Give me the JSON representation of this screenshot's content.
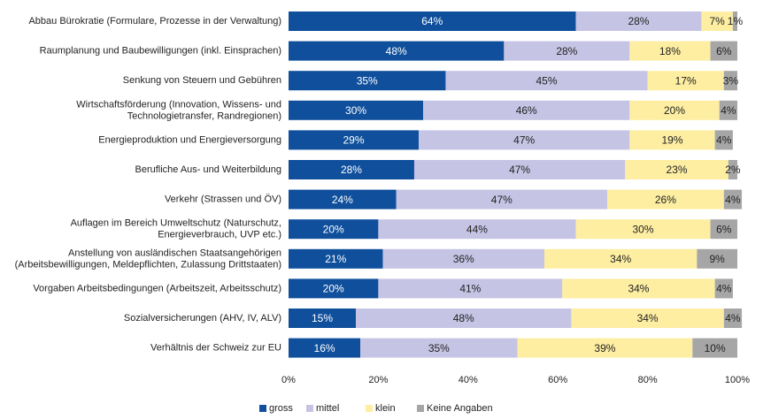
{
  "chart_data": {
    "type": "stacked_bar_horizontal",
    "categories": [
      "Abbau Bürokratie (Formulare, Prozesse in der Verwaltung)",
      "Raumplanung und Baubewilligungen (inkl. Einsprachen)",
      "Senkung von Steuern und Gebühren",
      "Wirtschaftsförderung (Innovation, Wissens- und\nTechnologietransfer, Randregionen)",
      "Energieproduktion und Energieversorgung",
      "Berufliche Aus- und Weiterbildung",
      "Verkehr (Strassen und ÖV)",
      "Auflagen im Bereich Umweltschutz (Naturschutz,\nEnergieverbrauch, UVP etc.)",
      "Anstellung von ausländischen Staatsangehörigen\n(Arbeitsbewilligungen, Meldepflichten, Zulassung Drittstaaten)",
      "Vorgaben Arbeitsbedingungen (Arbeitszeit, Arbeitsschutz)",
      "Sozialversicherungen (AHV, IV, ALV)",
      "Verhältnis der Schweiz zur EU"
    ],
    "series": [
      {
        "name": "gross",
        "color": "#0f4f9c",
        "values": [
          64,
          48,
          35,
          30,
          29,
          28,
          24,
          20,
          21,
          20,
          15,
          16
        ],
        "value_labels": [
          "64%",
          "48%",
          "35%",
          "30%",
          "29%",
          "28%",
          "24%",
          "20%",
          "21%",
          "20%",
          "15%",
          "16%"
        ]
      },
      {
        "name": "mittel",
        "color": "#c6c4e4",
        "values": [
          28,
          28,
          45,
          46,
          47,
          47,
          47,
          44,
          36,
          41,
          48,
          35
        ],
        "value_labels": [
          "28%",
          "28%",
          "45%",
          "46%",
          "47%",
          "47%",
          "47%",
          "44%",
          "36%",
          "41%",
          "48%",
          "35%"
        ]
      },
      {
        "name": "klein",
        "color": "#fdeea2",
        "values": [
          7,
          18,
          17,
          20,
          19,
          23,
          26,
          30,
          34,
          34,
          34,
          39
        ],
        "value_labels": [
          "7%",
          "18%",
          "17%",
          "20%",
          "19%",
          "23%",
          "26%",
          "30%",
          "34%",
          "34%",
          "34%",
          "39%"
        ]
      },
      {
        "name": "Keine Angaben",
        "color": "#a6a6a6",
        "values": [
          1,
          6,
          3,
          4,
          4,
          2,
          4,
          6,
          9,
          4,
          4,
          10
        ],
        "value_labels": [
          "1%",
          "6%",
          "3%",
          "4%",
          "4%",
          "2%",
          "4%",
          "6%",
          "9%",
          "4%",
          "4%",
          "10%"
        ]
      }
    ],
    "xlim": [
      0,
      100
    ],
    "xticks": [
      {
        "value": 0,
        "label": "0%"
      },
      {
        "value": 20,
        "label": "20%"
      },
      {
        "value": 40,
        "label": "40%"
      },
      {
        "value": 60,
        "label": "60%"
      },
      {
        "value": 80,
        "label": "80%"
      },
      {
        "value": 100,
        "label": "100%"
      }
    ],
    "legend": "bottom"
  }
}
